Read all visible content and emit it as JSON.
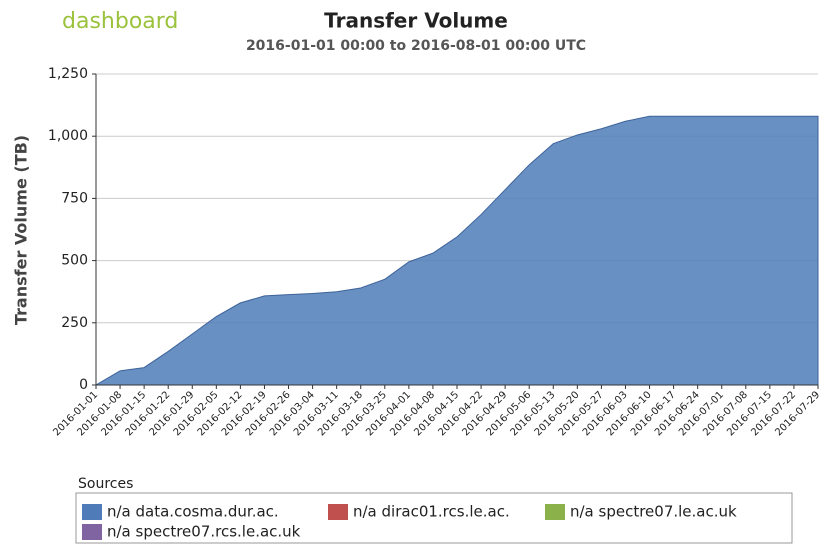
{
  "chart_data": {
    "type": "area",
    "logo": "dashboard",
    "title": "Transfer Volume",
    "subtitle": "2016-01-01 00:00 to 2016-08-01 00:00 UTC",
    "y_label": "Transfer Volume (TB)",
    "categories": [
      "2016-01-01",
      "2016-01-08",
      "2016-01-15",
      "2016-01-22",
      "2016-01-29",
      "2016-02-05",
      "2016-02-12",
      "2016-02-19",
      "2016-02-26",
      "2016-03-04",
      "2016-03-11",
      "2016-03-18",
      "2016-03-25",
      "2016-04-01",
      "2016-04-08",
      "2016-04-15",
      "2016-04-22",
      "2016-04-29",
      "2016-05-06",
      "2016-05-13",
      "2016-05-20",
      "2016-05-27",
      "2016-06-03",
      "2016-06-10",
      "2016-06-17",
      "2016-06-24",
      "2016-07-01",
      "2016-07-08",
      "2016-07-15",
      "2016-07-22",
      "2016-07-29"
    ],
    "series": [
      {
        "name": "n/a data.cosma.dur.ac.",
        "color": "#4f7cb8",
        "values": [
          0,
          57,
          70,
          135,
          205,
          275,
          330,
          358,
          363,
          368,
          375,
          390,
          425,
          495,
          530,
          595,
          685,
          785,
          885,
          970,
          1005,
          1030,
          1060,
          1080,
          1080,
          1080,
          1080,
          1080,
          1080,
          1080,
          1080
        ]
      }
    ],
    "legend": {
      "title": "Sources",
      "items": [
        {
          "name": "n/a data.cosma.dur.ac.",
          "color": "#4f7cb8"
        },
        {
          "name": "n/a dirac01.rcs.le.ac.",
          "color": "#c0504d"
        },
        {
          "name": "n/a spectre07.le.ac.uk",
          "color": "#8bb24a"
        },
        {
          "name": "n/a spectre07.rcs.le.ac.uk",
          "color": "#8064a2"
        }
      ]
    },
    "ylim": [
      0,
      1250
    ],
    "yticks": [
      0,
      250,
      500,
      750,
      {
        "value": 1000,
        "label": "1,000"
      },
      {
        "value": 1250,
        "label": "1,250"
      }
    ],
    "grid": true
  }
}
